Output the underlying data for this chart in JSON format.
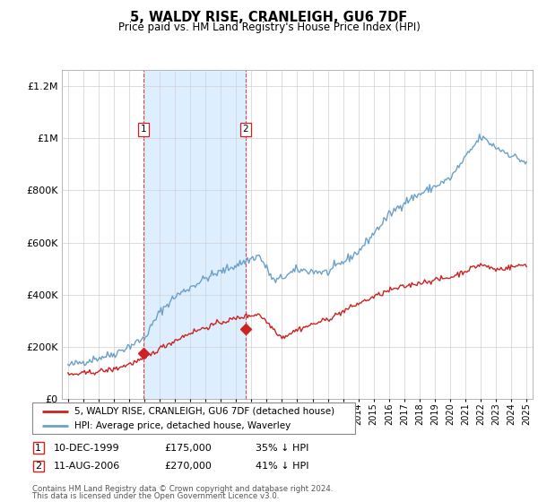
{
  "title": "5, WALDY RISE, CRANLEIGH, GU6 7DF",
  "subtitle": "Price paid vs. HM Land Registry's House Price Index (HPI)",
  "hpi_color": "#6ca0c8",
  "price_color": "#cc2222",
  "shade_color": "#ddeeff",
  "transactions": [
    {
      "label": "1",
      "date_num": 1999.94,
      "price": 175000,
      "note": "10-DEC-1999",
      "pct": "35% ↓ HPI"
    },
    {
      "label": "2",
      "date_num": 2006.62,
      "price": 270000,
      "note": "11-AUG-2006",
      "pct": "41% ↓ HPI"
    }
  ],
  "legend_entries": [
    "5, WALDY RISE, CRANLEIGH, GU6 7DF (detached house)",
    "HPI: Average price, detached house, Waverley"
  ],
  "footnote1": "Contains HM Land Registry data © Crown copyright and database right 2024.",
  "footnote2": "This data is licensed under the Open Government Licence v3.0.",
  "ylim": [
    0,
    1260000
  ],
  "yticks": [
    0,
    200000,
    400000,
    600000,
    800000,
    1000000,
    1200000
  ],
  "xlim_start": 1994.6,
  "xlim_end": 2025.4
}
